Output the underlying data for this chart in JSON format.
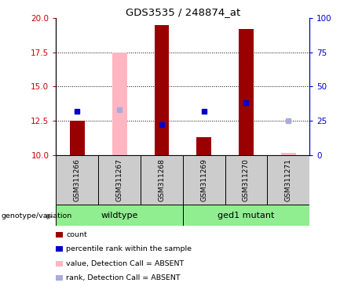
{
  "title": "GDS3535 / 248874_at",
  "samples": [
    "GSM311266",
    "GSM311267",
    "GSM311268",
    "GSM311269",
    "GSM311270",
    "GSM311271"
  ],
  "ylim_left": [
    10,
    20
  ],
  "ylim_right": [
    0,
    100
  ],
  "yticks_left": [
    10,
    12.5,
    15,
    17.5,
    20
  ],
  "yticks_right": [
    0,
    25,
    50,
    75,
    100
  ],
  "bar_bottom": 10,
  "red_bars": {
    "GSM311266": 12.5,
    "GSM311268": 19.5,
    "GSM311269": 11.3,
    "GSM311270": 19.2
  },
  "pink_bars": {
    "GSM311267": 17.5,
    "GSM311271": 10.15
  },
  "blue_squares": {
    "GSM311266": 13.2,
    "GSM311268": 12.2,
    "GSM311269": 13.2,
    "GSM311270": 13.8
  },
  "lavender_squares": {
    "GSM311267": 13.3,
    "GSM311271": 12.5
  },
  "group_info": [
    {
      "label": "wildtype",
      "start": 0,
      "end": 3
    },
    {
      "label": "ged1 mutant",
      "start": 3,
      "end": 6
    }
  ],
  "bar_width": 0.35,
  "red_color": "#990000",
  "pink_color": "#FFB6C1",
  "blue_color": "#0000CC",
  "lavender_color": "#AAAADD",
  "plot_bg": "#FFFFFF",
  "group_bg": "#90EE90",
  "sample_bg": "#CCCCCC",
  "left_axis_color": "#CC0000",
  "right_axis_color": "#0000CC",
  "legend_items": [
    {
      "color": "#990000",
      "label": "count"
    },
    {
      "color": "#0000CC",
      "label": "percentile rank within the sample"
    },
    {
      "color": "#FFB6C1",
      "label": "value, Detection Call = ABSENT"
    },
    {
      "color": "#AAAADD",
      "label": "rank, Detection Call = ABSENT"
    }
  ]
}
